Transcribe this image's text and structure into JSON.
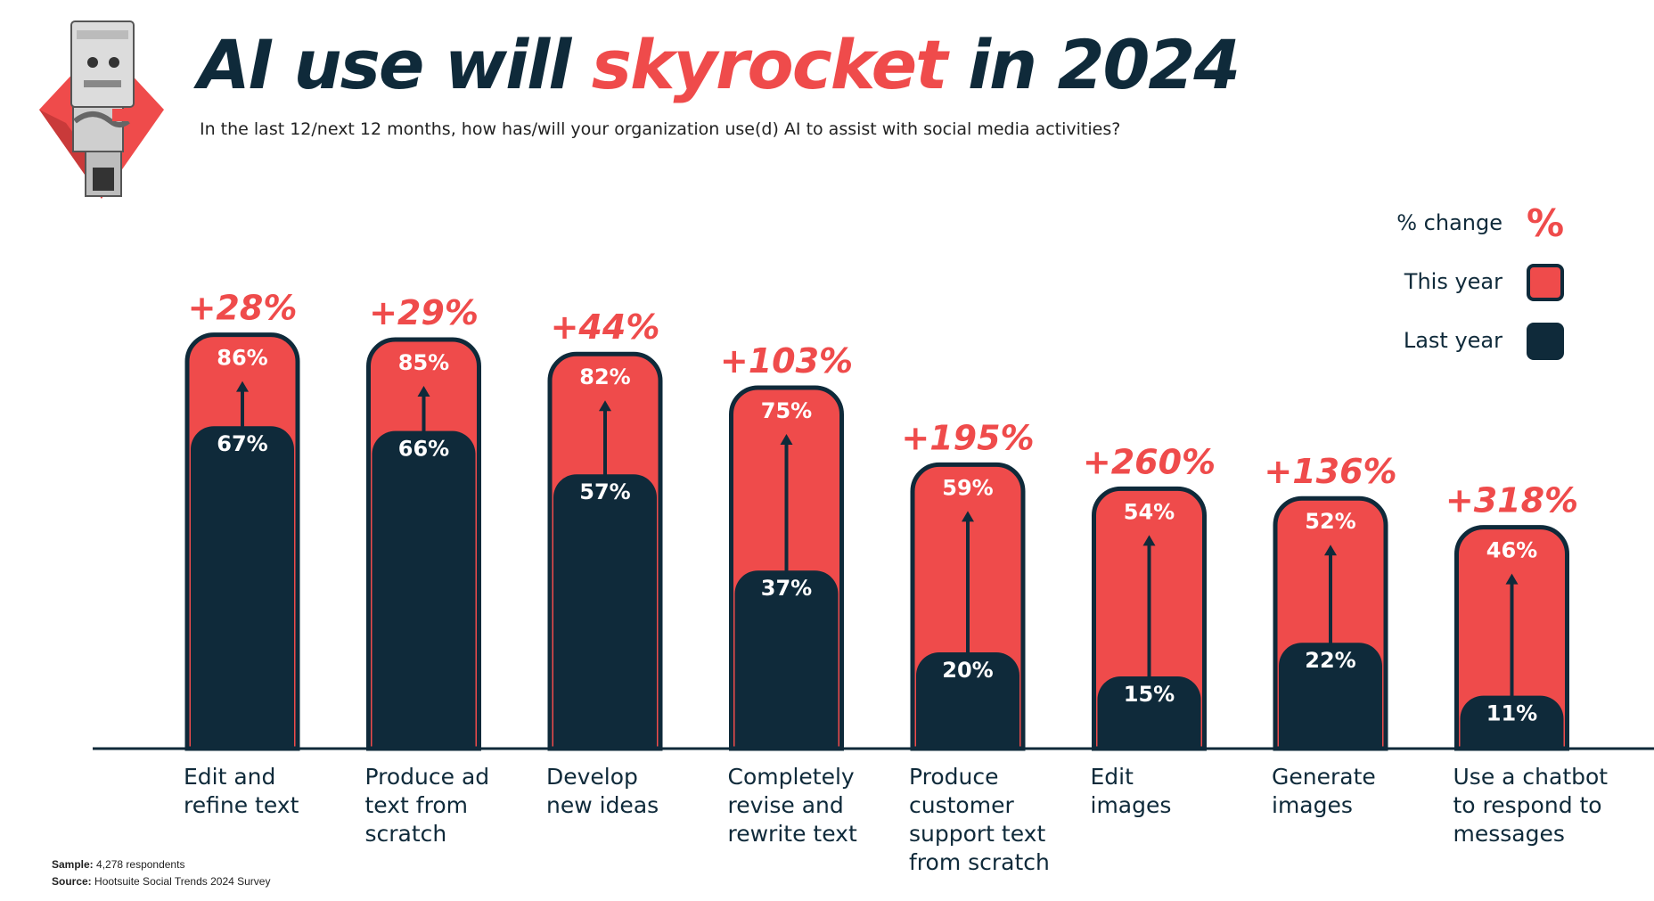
{
  "title": {
    "part1": "AI use will ",
    "highlight": "skyrocket",
    "part2": " in 2024"
  },
  "subtitle": "In the last 12/next 12 months, how has/will your organization use(d) AI to assist with social media activities?",
  "legend": {
    "change_label": "% change",
    "change_symbol": "%",
    "this_year_label": "This year",
    "last_year_label": "Last year"
  },
  "footer": {
    "sample_label": "Sample:",
    "sample_value": "4,278 respondents",
    "source_label": "Source:",
    "source_value": "Hootsuite Social Trends 2024 Survey"
  },
  "colors": {
    "this_year": "#ef4b4b",
    "last_year": "#0f2a3a",
    "accent": "#ef4b4b"
  },
  "chart_data": {
    "type": "bar",
    "title": "AI use will skyrocket in 2024",
    "categories": [
      [
        "Edit and",
        "refine text"
      ],
      [
        "Produce ad",
        "text from",
        "scratch"
      ],
      [
        "Develop",
        "new ideas"
      ],
      [
        "Completely",
        "revise and",
        "rewrite text"
      ],
      [
        "Produce",
        "customer",
        "support text",
        "from scratch"
      ],
      [
        "Edit",
        "images"
      ],
      [
        "Generate",
        "images"
      ],
      [
        "Use a chatbot",
        "to respond to",
        "messages"
      ]
    ],
    "series": [
      {
        "name": "This year",
        "values": [
          86,
          85,
          82,
          75,
          59,
          54,
          52,
          46
        ],
        "labels": [
          "86%",
          "85%",
          "82%",
          "75%",
          "59%",
          "54%",
          "52%",
          "46%"
        ]
      },
      {
        "name": "Last year",
        "values": [
          67,
          66,
          57,
          37,
          20,
          15,
          22,
          11
        ],
        "labels": [
          "67%",
          "66%",
          "57%",
          "37%",
          "20%",
          "15%",
          "22%",
          "11%"
        ]
      }
    ],
    "change": [
      "+28%",
      "+29%",
      "+44%",
      "+103%",
      "+195%",
      "+260%",
      "+136%",
      "+318%"
    ],
    "ylim": [
      0,
      100
    ],
    "grid": false,
    "legend_position": "top-right"
  }
}
